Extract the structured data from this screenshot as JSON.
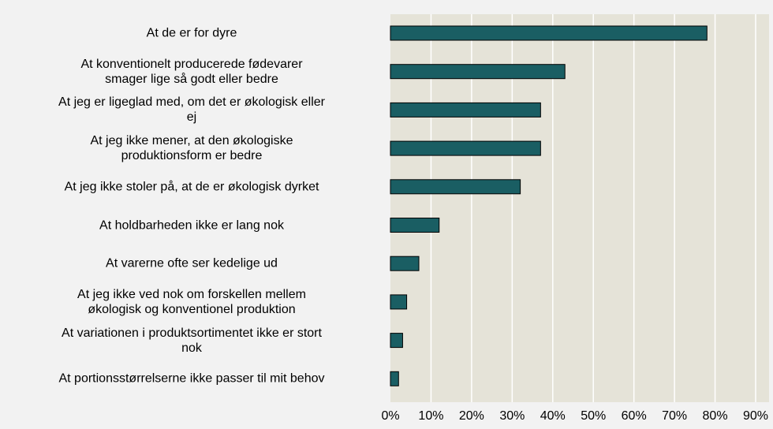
{
  "chart_data": {
    "type": "barh",
    "categories": [
      "At de er for dyre",
      "At konventionelt producerede fødevarer\nsmager lige så godt eller bedre",
      "At jeg er ligeglad med, om det er økologisk eller\nej",
      "At jeg ikke mener, at den økologiske\nproduktionsform er bedre",
      "At jeg ikke stoler på, at de er økologisk dyrket",
      "At holdbarheden ikke er lang nok",
      "At varerne ofte ser kedelige ud",
      "At jeg ikke ved nok om forskellen mellem\nøkologisk og konventionel produktion",
      "At variationen i produktsortimentet ikke er stort\nnok",
      "At portionsstørrelserne ikke passer til mit behov"
    ],
    "values": [
      78,
      43,
      37,
      37,
      32,
      12,
      7,
      4,
      3,
      2
    ],
    "color": "#1a5e63",
    "xlim": [
      0,
      90
    ],
    "xticks": [
      {
        "value": 0,
        "label": "0%"
      },
      {
        "value": 10,
        "label": "10%"
      },
      {
        "value": 20,
        "label": "20%"
      },
      {
        "value": 30,
        "label": "30%"
      },
      {
        "value": 40,
        "label": "40%"
      },
      {
        "value": 50,
        "label": "50%"
      },
      {
        "value": 60,
        "label": "60%"
      },
      {
        "value": 70,
        "label": "70%"
      },
      {
        "value": 80,
        "label": "80%"
      },
      {
        "value": 90,
        "label": "90%"
      }
    ],
    "grid": true
  }
}
